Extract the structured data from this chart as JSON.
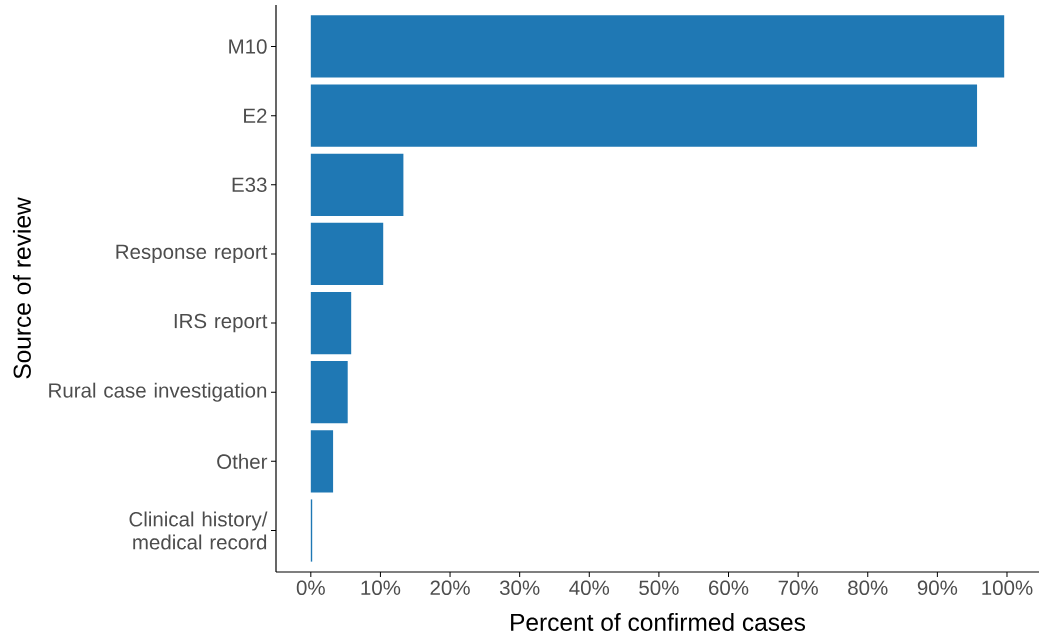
{
  "chart_data": {
    "type": "bar",
    "orientation": "horizontal",
    "xlabel": "Percent of confirmed cases",
    "ylabel": "Source of review",
    "categories": [
      "M10",
      "E2",
      "E33",
      "Response report",
      "IRS report",
      "Rural case investigation",
      "Other",
      "Clinical history/ medical record"
    ],
    "values": [
      99.6,
      95.7,
      13.3,
      10.4,
      5.8,
      5.3,
      3.2,
      0.2
    ],
    "color": "#1f78b4",
    "xlim": [
      -5,
      104.6
    ],
    "xticks": [
      {
        "value": 0,
        "label": "0%"
      },
      {
        "value": 10,
        "label": "10%"
      },
      {
        "value": 20,
        "label": "20%"
      },
      {
        "value": 30,
        "label": "30%"
      },
      {
        "value": 40,
        "label": "40%"
      },
      {
        "value": 50,
        "label": "50%"
      },
      {
        "value": 60,
        "label": "60%"
      },
      {
        "value": 70,
        "label": "70%"
      },
      {
        "value": 80,
        "label": "80%"
      },
      {
        "value": 90,
        "label": "90%"
      },
      {
        "value": 100,
        "label": "100%"
      }
    ],
    "grid": false
  }
}
